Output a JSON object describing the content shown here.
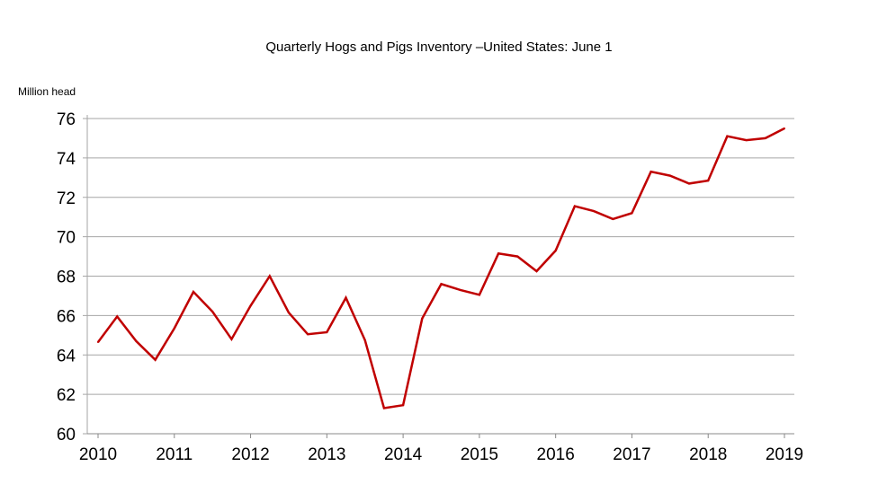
{
  "chart_data": {
    "type": "line",
    "title": "Quarterly Hogs and Pigs Inventory –United States: June 1",
    "ylabel": "Million head",
    "xlabel": "",
    "ylim": [
      60,
      76
    ],
    "xlim": [
      2010,
      2019
    ],
    "yticks": [
      "60",
      "62",
      "64",
      "66",
      "68",
      "70",
      "72",
      "74",
      "76"
    ],
    "xticks": [
      "2010",
      "2011",
      "2012",
      "2013",
      "2014",
      "2015",
      "2016",
      "2017",
      "2018",
      "2019"
    ],
    "grid": "horizontal",
    "colors": {
      "line": "#c00000",
      "grid": "#a6a6a6"
    },
    "series": [
      {
        "x": [
          2010,
          2010.25,
          2010.5,
          2010.75,
          2011,
          2011.25,
          2011.5,
          2011.75,
          2012,
          2012.25,
          2012.5,
          2012.75,
          2013,
          2013.25,
          2013.5,
          2013.75,
          2014,
          2014.25,
          2014.5,
          2014.75,
          2015,
          2015.25,
          2015.5,
          2015.75,
          2016,
          2016.25,
          2016.5,
          2016.75,
          2017,
          2017.25,
          2017.5,
          2017.75,
          2018,
          2018.25,
          2018.5,
          2018.75,
          2019
        ],
        "values": [
          64.65,
          65.95,
          64.7,
          63.75,
          65.35,
          67.2,
          66.2,
          64.8,
          66.5,
          68.0,
          66.15,
          65.05,
          65.15,
          66.9,
          64.75,
          61.3,
          61.45,
          65.85,
          67.6,
          67.3,
          67.05,
          69.15,
          69.0,
          68.25,
          69.3,
          71.55,
          71.3,
          70.9,
          71.2,
          73.3,
          73.1,
          72.7,
          72.85,
          75.1,
          74.9,
          75.0,
          75.5
        ]
      }
    ]
  }
}
